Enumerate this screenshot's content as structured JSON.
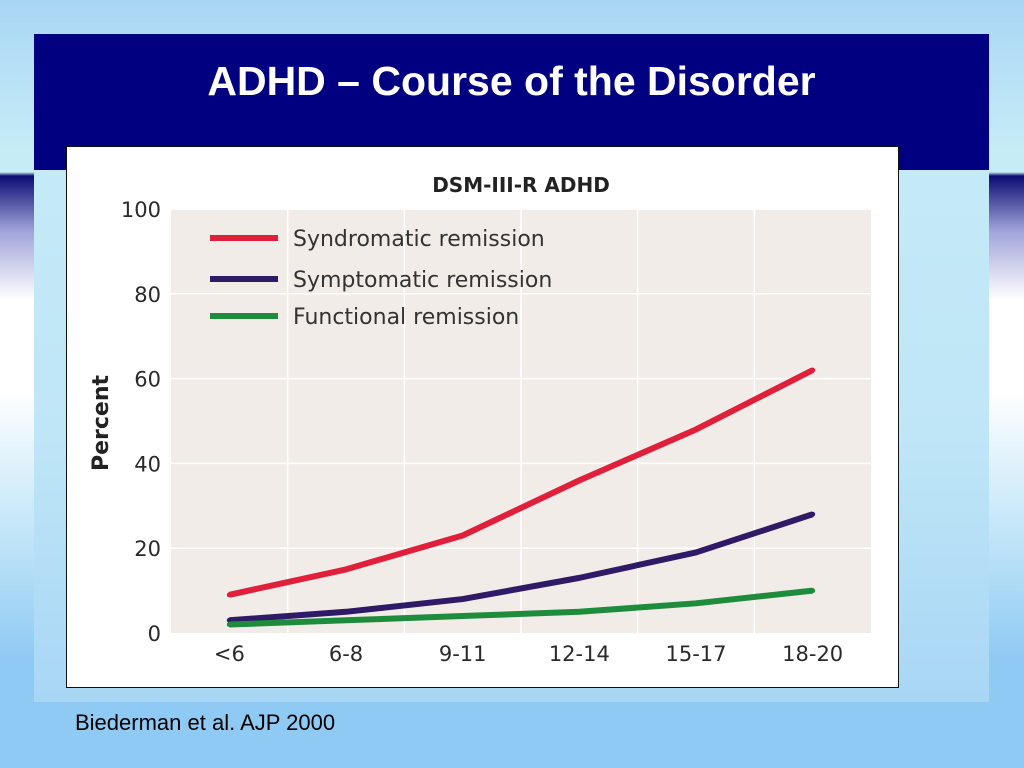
{
  "slide": {
    "title": "ADHD – Course of the Disorder",
    "citation": "Biederman et al. AJP 2000"
  },
  "chart_data": {
    "type": "line",
    "title": "DSM-III-R ADHD",
    "xlabel": "",
    "ylabel": "Percent",
    "categories": [
      "<6",
      "6-8",
      "9-11",
      "12-14",
      "15-17",
      "18-20"
    ],
    "ylim": [
      0,
      100
    ],
    "yticks": [
      0,
      20,
      40,
      60,
      80,
      100
    ],
    "grid": true,
    "legend_position": "top-left",
    "series": [
      {
        "name": "Syndromatic remission",
        "color": "#e0203a",
        "values": [
          9,
          15,
          23,
          36,
          48,
          62
        ]
      },
      {
        "name": "Symptomatic remission",
        "color": "#2e1a66",
        "values": [
          3,
          5,
          8,
          13,
          19,
          28
        ]
      },
      {
        "name": "Functional remission",
        "color": "#1e8c3c",
        "values": [
          2,
          3,
          4,
          5,
          7,
          10
        ]
      }
    ]
  }
}
